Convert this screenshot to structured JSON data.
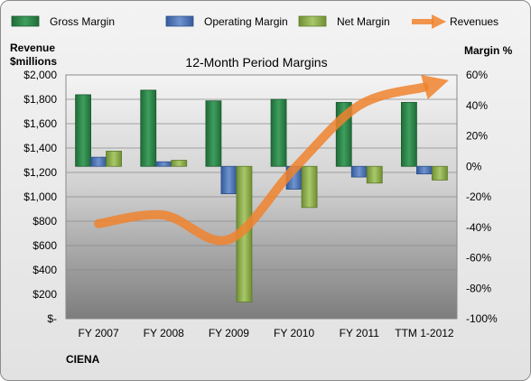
{
  "chart_data": {
    "type": "bar",
    "title": "12-Month Period Margins",
    "categories": [
      "FY 2007",
      "FY 2008",
      "FY 2009",
      "FY 2010",
      "FY 2011",
      "TTM 1-2012"
    ],
    "series": [
      {
        "name": "Gross Margin",
        "axis": "right",
        "type": "bar",
        "color": "#2e8b4e",
        "values": [
          47,
          50,
          43,
          44,
          42,
          42
        ]
      },
      {
        "name": "Operating Margin",
        "axis": "right",
        "type": "bar",
        "color": "#4a6fb5",
        "values": [
          6,
          3,
          -18,
          -15,
          -7,
          -5
        ]
      },
      {
        "name": "Net Margin",
        "axis": "right",
        "type": "bar",
        "color": "#8db04a",
        "values": [
          10,
          4,
          -89,
          -27,
          -11,
          -9
        ]
      },
      {
        "name": "Revenues",
        "axis": "left",
        "type": "line",
        "color": "#f0822e",
        "values": [
          780,
          850,
          650,
          1230,
          1750,
          1900
        ]
      }
    ],
    "y_left": {
      "title_line1": "Revenue",
      "title_line2": "$millions",
      "ylim": [
        0,
        2000
      ],
      "ticks": [
        0,
        200,
        400,
        600,
        800,
        1000,
        1200,
        1400,
        1600,
        1800,
        2000
      ],
      "tick_labels": [
        "$-",
        "$200",
        "$400",
        "$600",
        "$800",
        "$1,000",
        "$1,200",
        "$1,400",
        "$1,600",
        "$1,800",
        "$2,000"
      ]
    },
    "y_right": {
      "title": "Margin %",
      "ylim": [
        -100,
        60
      ],
      "ticks": [
        -100,
        -80,
        -60,
        -40,
        -20,
        0,
        20,
        40,
        60
      ],
      "tick_labels": [
        "-100%",
        "-80%",
        "-60%",
        "-40%",
        "-20%",
        "0%",
        "20%",
        "40%",
        "60%"
      ]
    },
    "legend_position": "top",
    "grid": true,
    "company": "CIENA"
  }
}
